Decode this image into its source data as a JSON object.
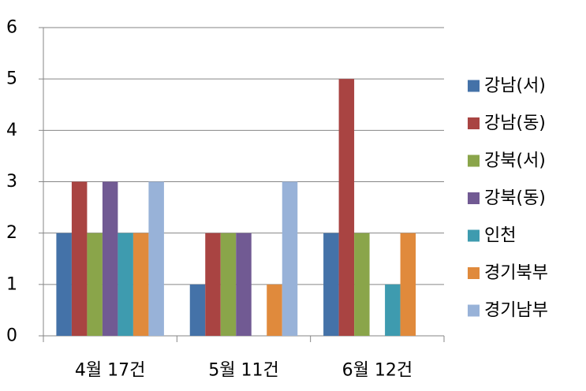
{
  "chart_data": {
    "type": "bar",
    "categories": [
      "4월 17건",
      "5월 11건",
      "6월 12건"
    ],
    "series": [
      {
        "name": "강남(서)",
        "color": "#4472A8",
        "values": [
          2,
          1,
          2
        ]
      },
      {
        "name": "강남(동)",
        "color": "#A94442",
        "values": [
          3,
          2,
          5
        ]
      },
      {
        "name": "강북(서)",
        "color": "#8AA54A",
        "values": [
          2,
          2,
          2
        ]
      },
      {
        "name": "강북(동)",
        "color": "#715A93",
        "values": [
          3,
          2,
          0
        ]
      },
      {
        "name": "인천",
        "color": "#3E9BAF",
        "values": [
          2,
          0,
          1
        ]
      },
      {
        "name": "경기북부",
        "color": "#E08A3C",
        "values": [
          2,
          1,
          2
        ]
      },
      {
        "name": "경기남부",
        "color": "#98B2D8",
        "values": [
          3,
          3,
          0
        ]
      }
    ],
    "yticks": [
      "0",
      "1",
      "2",
      "3",
      "4",
      "5",
      "6"
    ],
    "ylim": [
      0,
      6
    ],
    "grid": true,
    "legend": "right"
  }
}
